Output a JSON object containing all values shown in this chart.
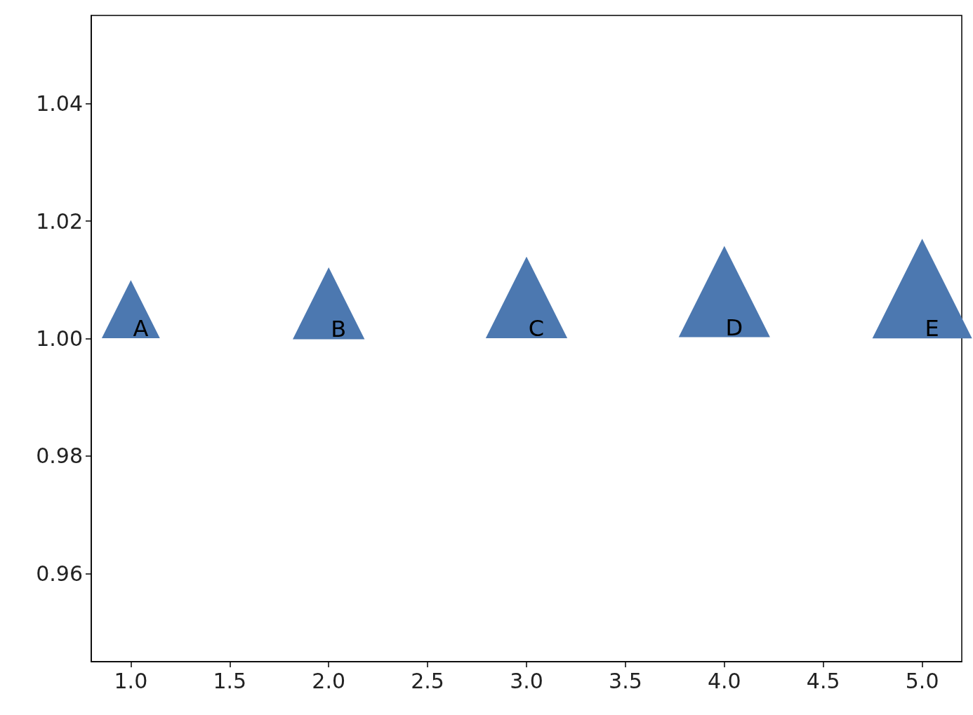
{
  "chart_data": {
    "type": "bubble",
    "marker": "triangle",
    "grid": false,
    "x": [
      1,
      2,
      3,
      4,
      5
    ],
    "values": [
      1.005,
      1.006,
      1.007,
      1.008,
      1.0085
    ],
    "sizes": [
      0.34,
      0.52,
      0.67,
      0.84,
      1
    ],
    "color": "#4c78b0",
    "xlim": [
      0.8,
      5.2
    ],
    "xticks": [
      {
        "value": 1,
        "label": "1.0"
      },
      {
        "value": 1.5,
        "label": "1.5"
      },
      {
        "value": 2,
        "label": "2.0"
      },
      {
        "value": 2.5,
        "label": "2.5"
      },
      {
        "value": 3,
        "label": "3.0"
      },
      {
        "value": 3.5,
        "label": "3.5"
      },
      {
        "value": 4,
        "label": "4.0"
      },
      {
        "value": 4.5,
        "label": "4.5"
      },
      {
        "value": 5,
        "label": "5.0"
      }
    ],
    "ylim": [
      0.945,
      1.055
    ],
    "yticks": [
      {
        "value": 0.96,
        "label": "0.96"
      },
      {
        "value": 0.98,
        "label": "0.98"
      },
      {
        "value": 1,
        "label": "1.00"
      },
      {
        "value": 1.02,
        "label": "1.02"
      },
      {
        "value": 1.04,
        "label": "1.04"
      }
    ],
    "annotations": [
      "A",
      "B",
      "C",
      "D",
      "E"
    ]
  }
}
